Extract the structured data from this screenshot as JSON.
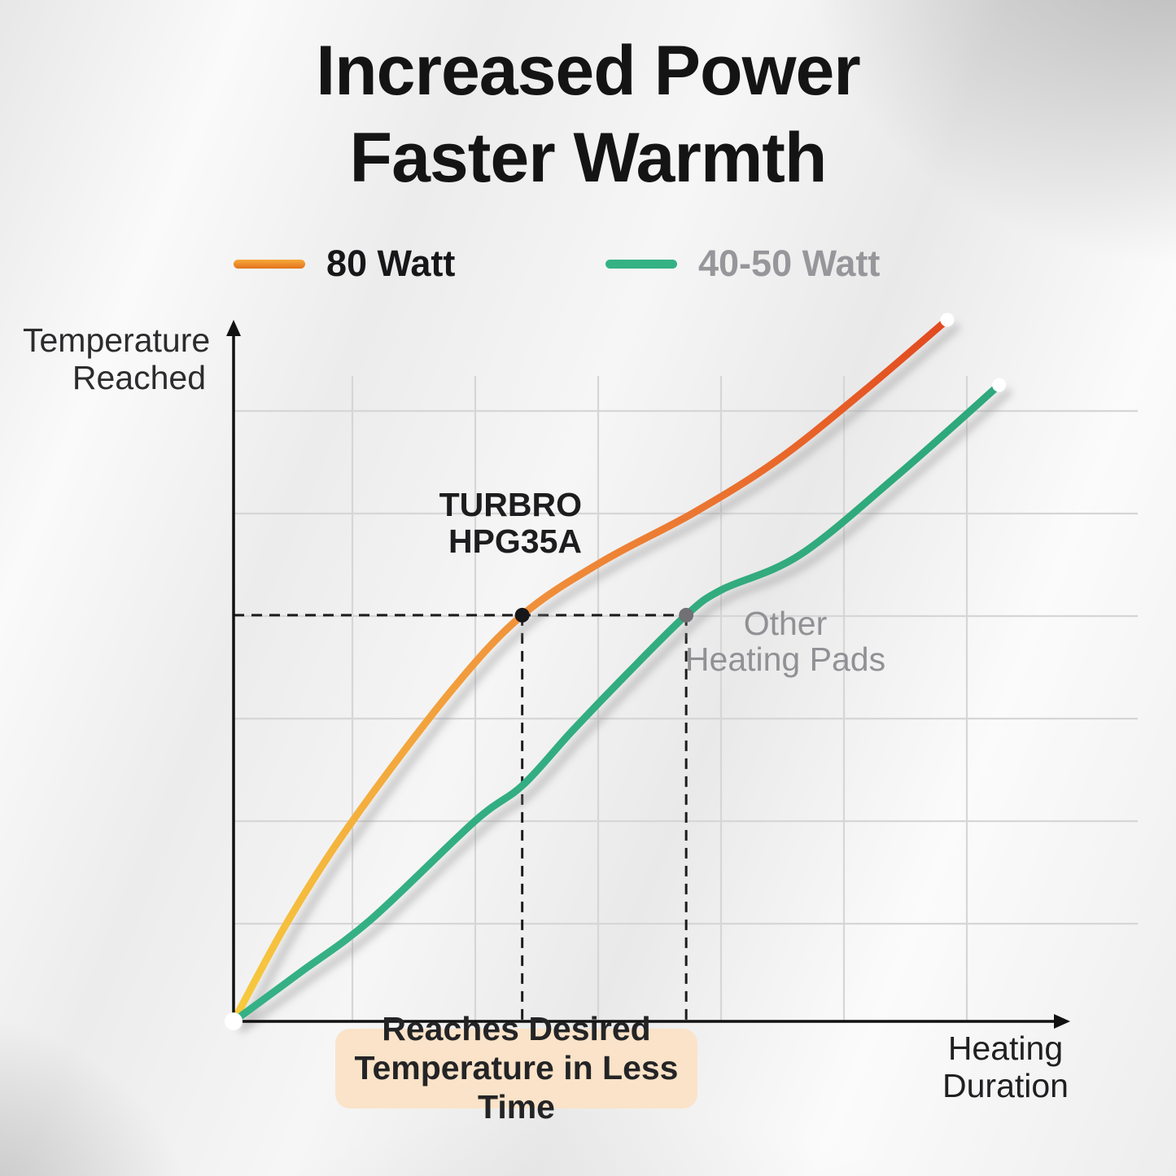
{
  "title": {
    "line1": "Increased Power",
    "line2": "Faster Warmth"
  },
  "legend": {
    "items": [
      {
        "label": "80 Watt",
        "color": "#E8761F"
      },
      {
        "label": "40-50 Watt",
        "color": "#35B186"
      }
    ]
  },
  "axes": {
    "y_label_line1": "Temperature",
    "y_label_line2": "Reached",
    "x_label_line1": "Heating",
    "x_label_line2": "Duration"
  },
  "annotations": {
    "turbro_line1": "TURBRO",
    "turbro_line2": "HPG35A",
    "other_line1": "Other",
    "other_line2": "Heating Pads",
    "callout_line1": "Reaches Desired",
    "callout_line2": "Temperature in Less Time"
  },
  "colors": {
    "orange_stops": [
      "#F7CB3D",
      "#F0913B",
      "#E2491F"
    ],
    "green": "#35B186",
    "green_end": "#2EA87B",
    "dot_black": "#17171a",
    "dot_gray": "#707075",
    "dashed": "#1c1c1c",
    "grid": "#d6d6d6",
    "axis": "#111111",
    "callout_bg": "#FAE3C8"
  },
  "chart_data": {
    "type": "line",
    "title": "Increased Power Faster Warmth",
    "xlabel": "Heating Duration",
    "ylabel": "Temperature Reached",
    "x_range": [
      0,
      100
    ],
    "y_range": [
      0,
      100
    ],
    "grid": true,
    "legend_position": "top",
    "series": [
      {
        "name": "80 Watt",
        "points": [
          [
            0,
            0
          ],
          [
            6.6,
            14.5
          ],
          [
            14.3,
            28.7
          ],
          [
            26,
            47.1
          ],
          [
            34.5,
            57.9
          ],
          [
            44,
            65.5
          ],
          [
            55,
            72.5
          ],
          [
            65,
            80
          ],
          [
            75,
            89.5
          ],
          [
            85.3,
            100
          ]
        ]
      },
      {
        "name": "40-50 Watt",
        "points": [
          [
            0,
            0
          ],
          [
            8,
            7
          ],
          [
            16.4,
            14.5
          ],
          [
            28.8,
            28.5
          ],
          [
            34.6,
            33.7
          ],
          [
            40.4,
            41.3
          ],
          [
            47,
            49.5
          ],
          [
            54.1,
            57.9
          ],
          [
            58.3,
            61.5
          ],
          [
            67.7,
            66.5
          ],
          [
            79.5,
            78
          ],
          [
            91.5,
            90.7
          ]
        ]
      }
    ],
    "markers": {
      "desired_temperature_level": 57.9,
      "turbro_reach_x": 34.5,
      "other_reach_x": 54.1
    }
  }
}
